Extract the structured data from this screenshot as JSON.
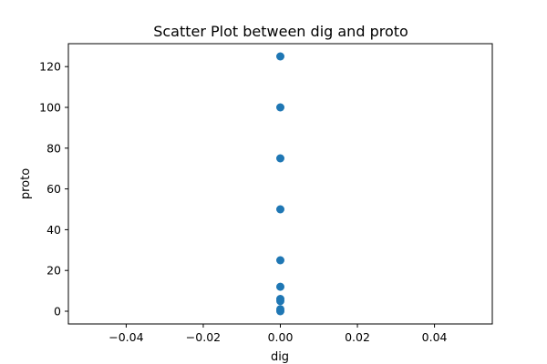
{
  "chart_data": {
    "type": "scatter",
    "title": "Scatter Plot between dig and proto",
    "xlabel": "dig",
    "ylabel": "proto",
    "xlim": [
      -0.055,
      0.055
    ],
    "ylim": [
      -6.25,
      131.25
    ],
    "xticks": [
      -0.04,
      -0.02,
      0.0,
      0.02,
      0.04
    ],
    "xtick_labels": [
      "−0.04",
      "−0.02",
      "0.00",
      "0.02",
      "0.04"
    ],
    "yticks": [
      0,
      20,
      40,
      60,
      80,
      100,
      120
    ],
    "ytick_labels": [
      "0",
      "20",
      "40",
      "60",
      "80",
      "100",
      "120"
    ],
    "grid": false,
    "legend": "none",
    "marker_color": "#1f77b4",
    "points": [
      {
        "x": 0,
        "y": 125
      },
      {
        "x": 0,
        "y": 100
      },
      {
        "x": 0,
        "y": 75
      },
      {
        "x": 0,
        "y": 50
      },
      {
        "x": 0,
        "y": 25
      },
      {
        "x": 0,
        "y": 12
      },
      {
        "x": 0,
        "y": 6
      },
      {
        "x": 0,
        "y": 5
      },
      {
        "x": 0,
        "y": 1
      },
      {
        "x": 0,
        "y": 0
      }
    ]
  }
}
